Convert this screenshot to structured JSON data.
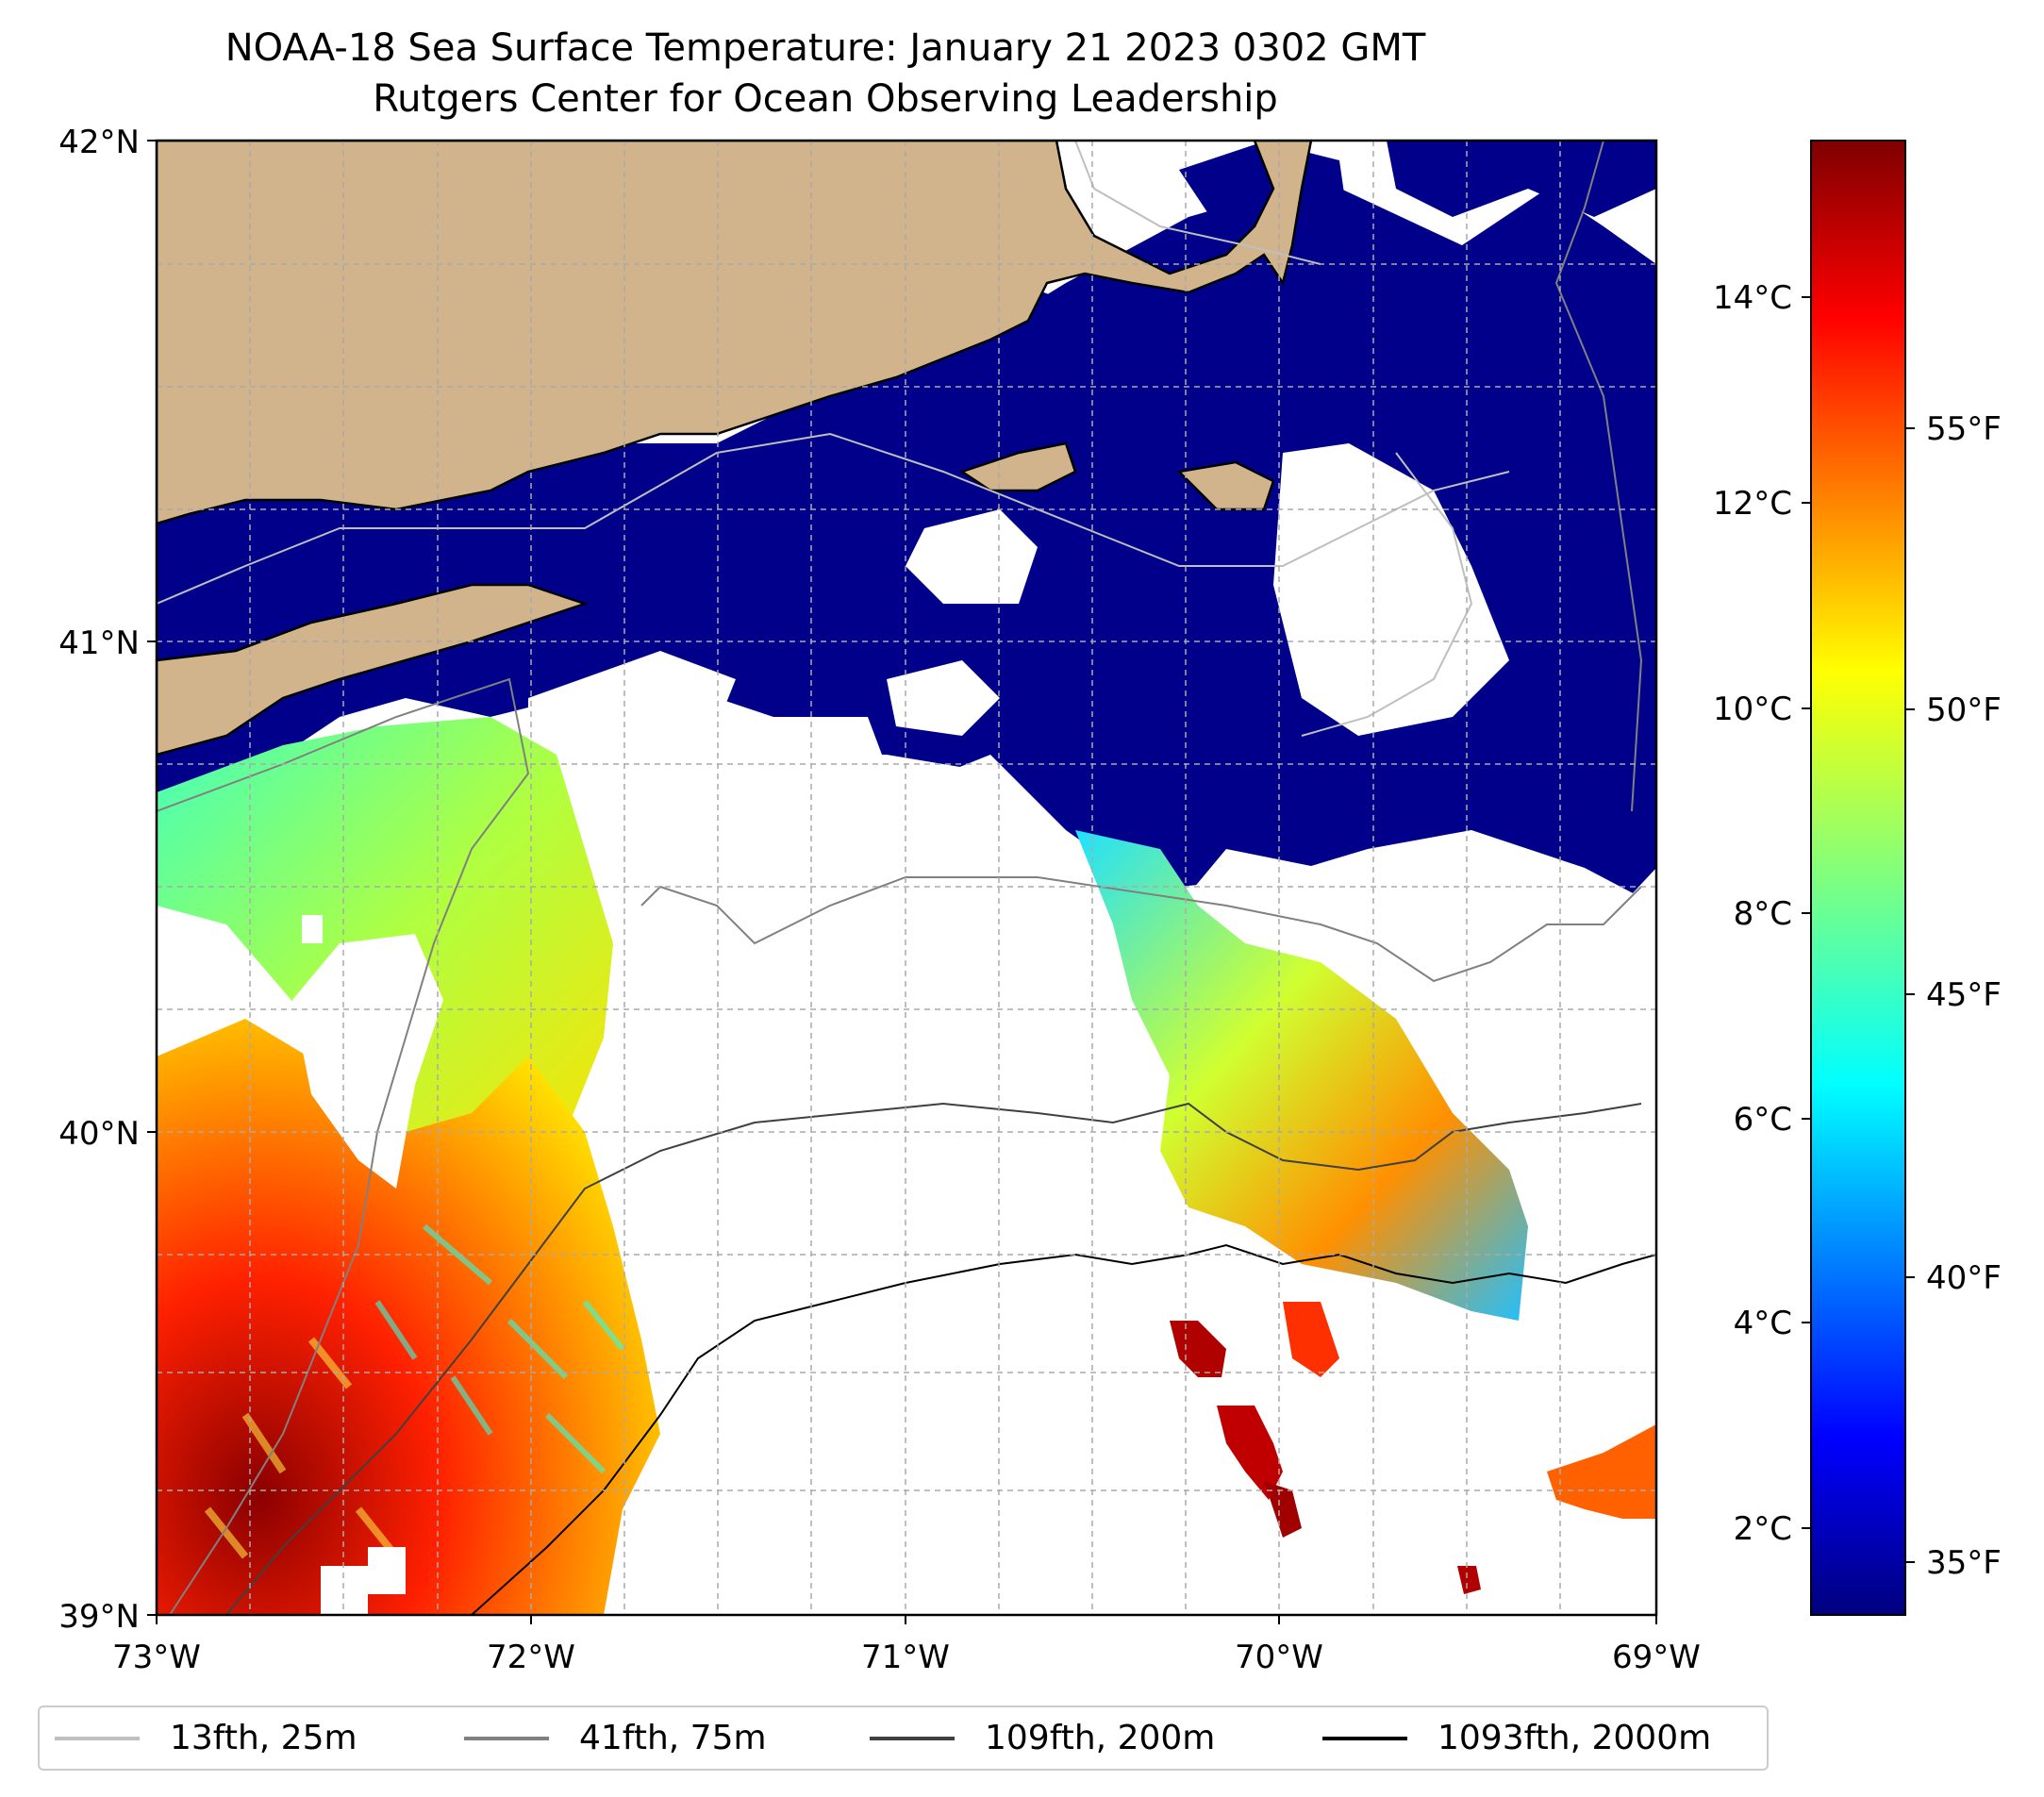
{
  "title": "NOAA-18 Sea Surface Temperature: January 21 2023 0302 GMT",
  "subtitle": "Rutgers Center for Ocean Observing Leadership",
  "axes": {
    "lat_labels": [
      "42°N",
      "41°N",
      "40°N",
      "39°N"
    ],
    "lon_labels": [
      "73°W",
      "72°W",
      "71°W",
      "70°W",
      "69°W"
    ],
    "lat_range": [
      39,
      42
    ],
    "lon_range": [
      -73,
      -69
    ]
  },
  "colorbar": {
    "celsius_labels": [
      "14°C",
      "12°C",
      "10°C",
      "8°C",
      "6°C",
      "4°C",
      "2°C"
    ],
    "fahrenheit_labels": [
      "55°F",
      "50°F",
      "45°F",
      "40°F",
      "35°F"
    ],
    "colormap": "jet",
    "colors": [
      "#00007f",
      "#0000ff",
      "#007fff",
      "#00ffff",
      "#7fff7f",
      "#ffff00",
      "#ff7f00",
      "#ff0000",
      "#7f0000"
    ]
  },
  "legend": [
    {
      "label": "13fth, 25m",
      "color": "#bfbfbf"
    },
    {
      "label": "41fth, 75m",
      "color": "#808080"
    },
    {
      "label": "109fth, 200m",
      "color": "#404040"
    },
    {
      "label": "1093fth, 2000m",
      "color": "#000000"
    }
  ],
  "colors": {
    "land": "#d2b48c",
    "cold_water": "#00008b",
    "no_data": "#ffffff"
  }
}
